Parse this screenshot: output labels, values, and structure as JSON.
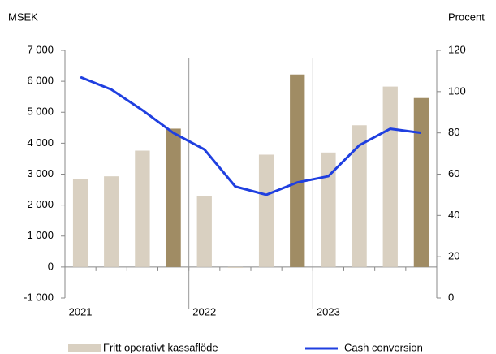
{
  "chart_data": {
    "type": "bar_line",
    "y_label": "MSEK",
    "y2_label": "Procent",
    "categories": [
      "2021",
      null,
      null,
      null,
      "2022",
      null,
      null,
      null,
      "2023",
      null,
      null,
      null
    ],
    "series": [
      {
        "name": "Fritt operativt kassaflöde",
        "color": "#d9d0c1",
        "colors": [
          "#d9d0c1",
          "#d9d0c1",
          "#d9d0c1",
          "#a08c64",
          "#d9d0c1",
          "#d9d0c1",
          "#d9d0c1",
          "#a08c64",
          "#d9d0c1",
          "#d9d0c1",
          "#d9d0c1",
          "#a08c64"
        ],
        "values": [
          2850,
          2930,
          3760,
          4470,
          2290,
          -30,
          3630,
          6220,
          3700,
          4580,
          5830,
          5460
        ]
      },
      {
        "name": "Cash conversion",
        "color": "#1f3fe0",
        "axis": "y2",
        "values": [
          107,
          101,
          91,
          80,
          72,
          54,
          50,
          56,
          59,
          74,
          82,
          80
        ]
      }
    ],
    "ylim": [
      -1000,
      7000
    ],
    "yticks": [
      {
        "value": -1000,
        "label": "-1 000"
      },
      0,
      {
        "value": 1000,
        "label": "1 000"
      },
      {
        "value": 2000,
        "label": "2 000"
      },
      {
        "value": 3000,
        "label": "3 000"
      },
      {
        "value": 4000,
        "label": "4 000"
      },
      {
        "value": 5000,
        "label": "5 000"
      },
      {
        "value": 6000,
        "label": "6 000"
      },
      {
        "value": 7000,
        "label": "7 000"
      }
    ],
    "y2lim": [
      0,
      120
    ],
    "y2ticks": [
      0,
      20,
      40,
      60,
      80,
      100,
      120
    ]
  }
}
